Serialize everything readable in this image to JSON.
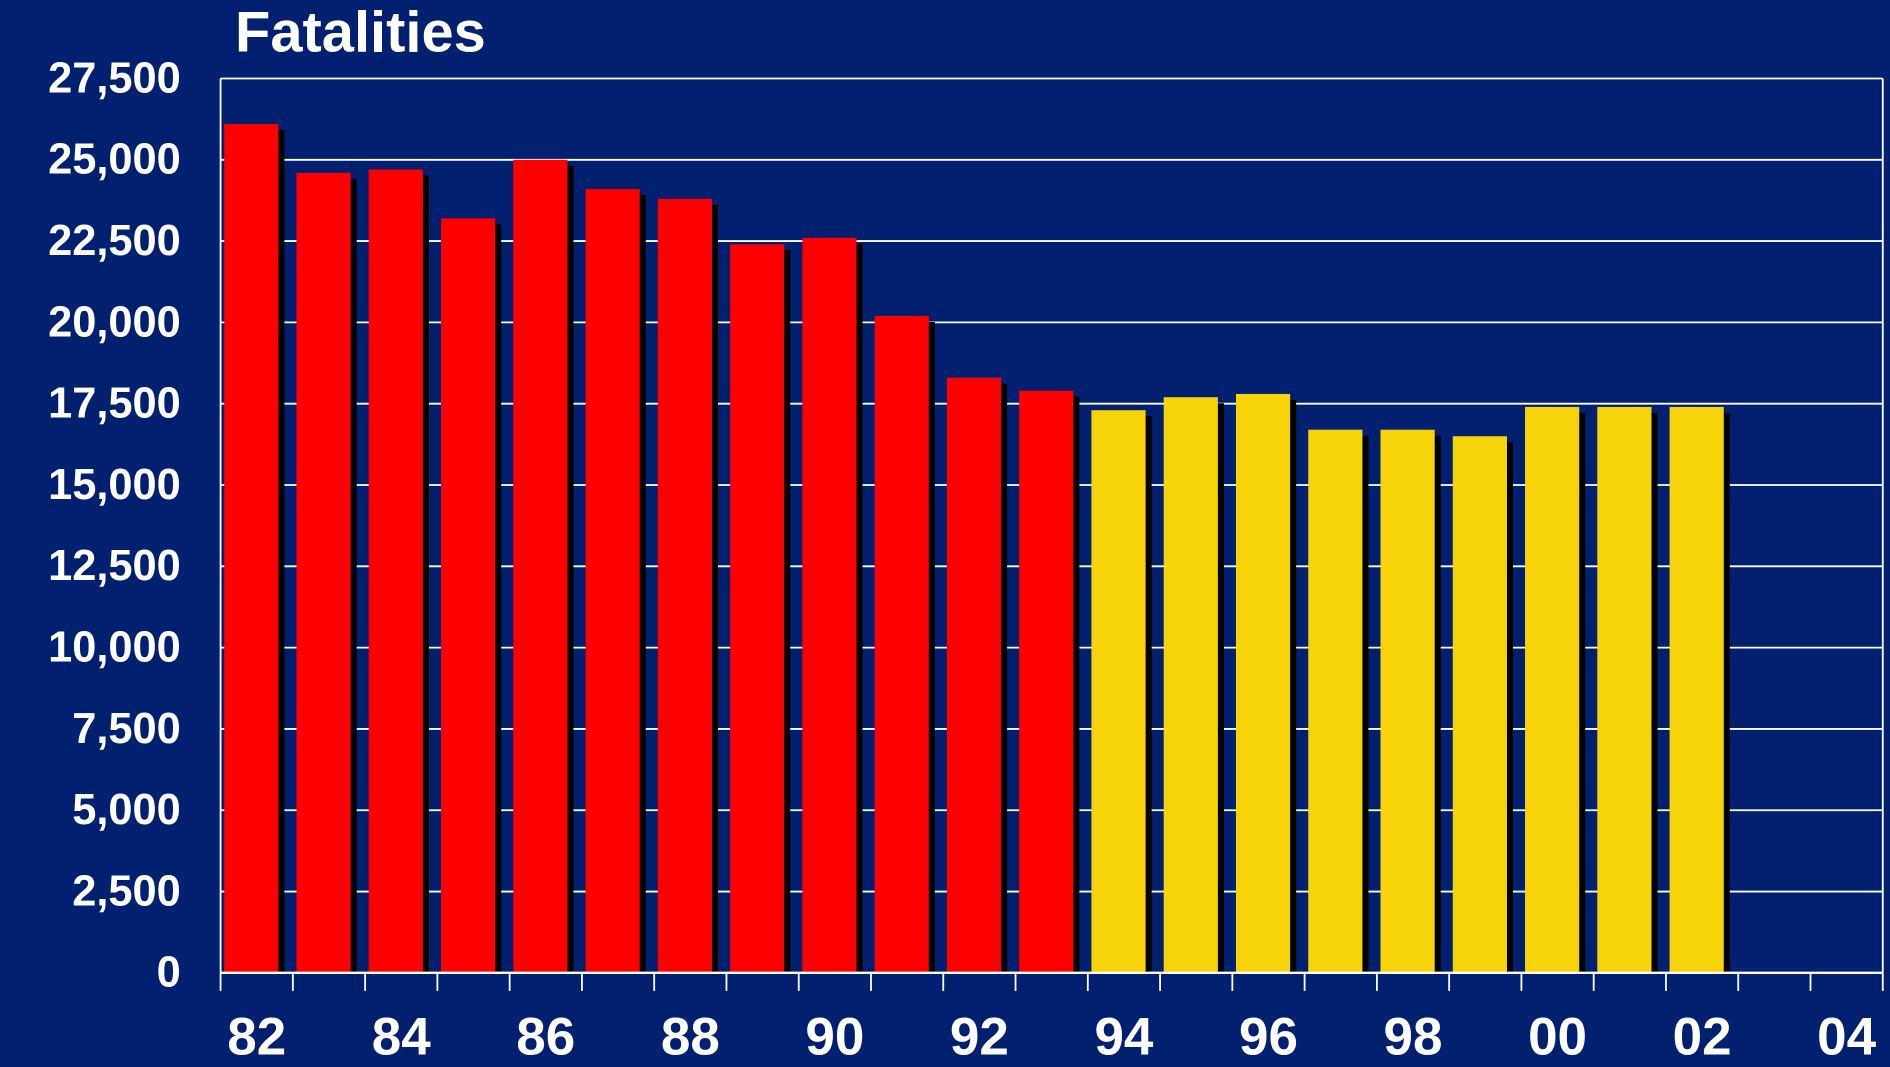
{
  "chart_data": {
    "type": "bar",
    "title": "Fatalities",
    "categories": [
      "82",
      null,
      "84",
      null,
      "86",
      null,
      "88",
      null,
      "90",
      null,
      "92",
      null,
      "94",
      null,
      "96",
      null,
      "98",
      null,
      "00",
      null,
      "02",
      null,
      "04"
    ],
    "values": [
      26100,
      24600,
      24700,
      23200,
      25000,
      24100,
      23800,
      22400,
      22600,
      20200,
      18300,
      17900,
      17300,
      17700,
      17800,
      16700,
      16700,
      16500,
      17400,
      17400,
      17400,
      null,
      null
    ],
    "colors": [
      "#ff0000",
      "#ff0000",
      "#ff0000",
      "#ff0000",
      "#ff0000",
      "#ff0000",
      "#ff0000",
      "#ff0000",
      "#ff0000",
      "#ff0000",
      "#ff0000",
      "#ff0000",
      "#f7d40a",
      "#f7d40a",
      "#f7d40a",
      "#f7d40a",
      "#f7d40a",
      "#f7d40a",
      "#f7d40a",
      "#f7d40a",
      "#f7d40a",
      "#f7d40a",
      "#f7d40a"
    ],
    "ylim": [
      0,
      27500
    ],
    "yticks": [
      0,
      {
        "value": 2500,
        "label": "2,500"
      },
      {
        "value": 5000,
        "label": "5,000"
      },
      {
        "value": 7500,
        "label": "7,500"
      },
      {
        "value": 10000,
        "label": "10,000"
      },
      {
        "value": 12500,
        "label": "12,500"
      },
      {
        "value": 15000,
        "label": "15,000"
      },
      {
        "value": 17500,
        "label": "17,500"
      },
      {
        "value": 20000,
        "label": "20,000"
      },
      {
        "value": 22500,
        "label": "22,500"
      },
      {
        "value": 25000,
        "label": "25,000"
      },
      {
        "value": 27500,
        "label": "27,500"
      }
    ],
    "grid": true
  }
}
